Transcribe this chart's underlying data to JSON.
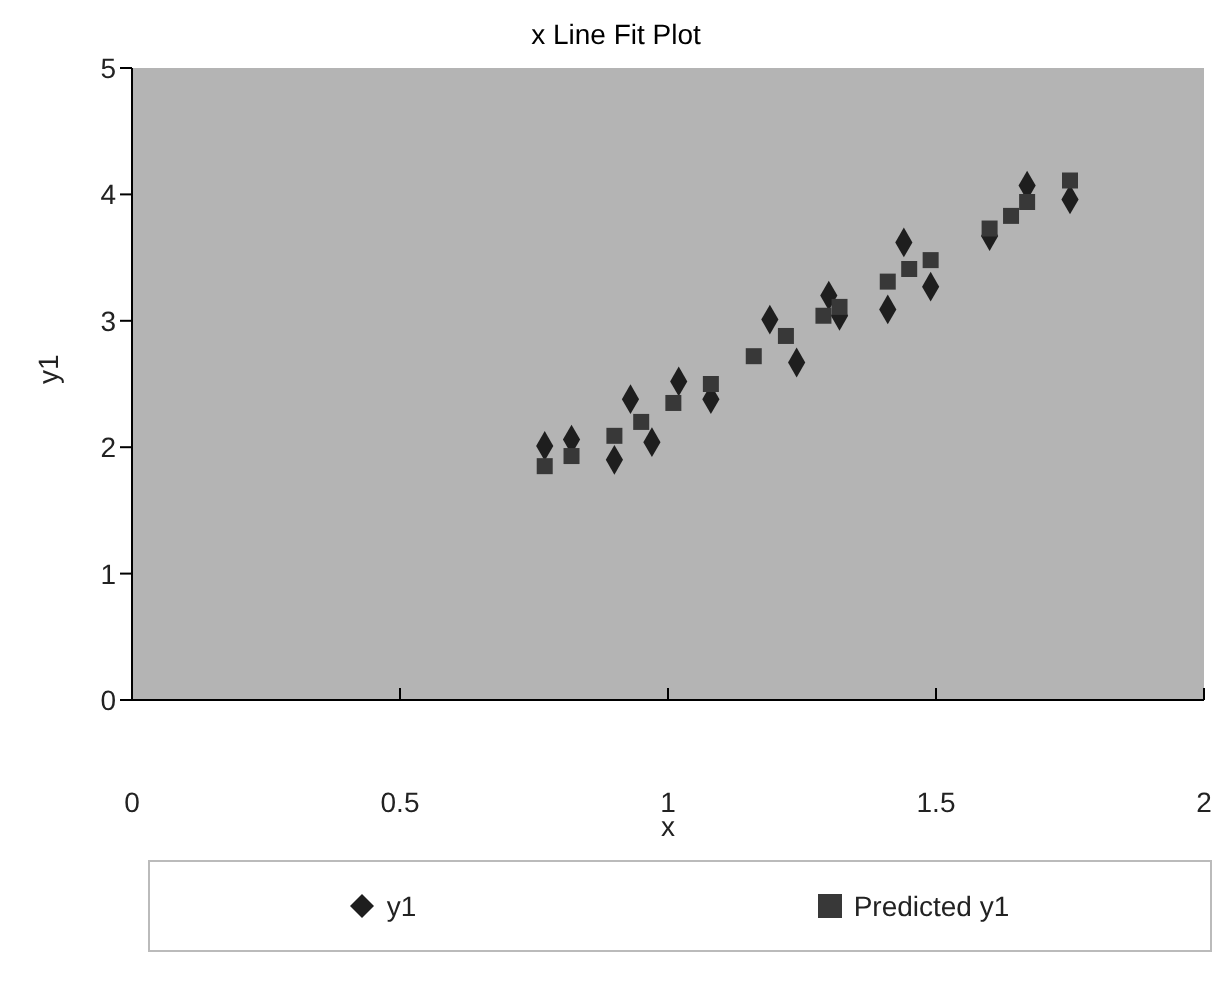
{
  "chart_data": {
    "type": "scatter",
    "title": "x Line Fit Plot",
    "xlabel": "x",
    "ylabel": "y1",
    "xlim": [
      0,
      2
    ],
    "xticks": [
      0,
      0.5,
      1,
      1.5,
      2
    ],
    "ylim": [
      0,
      5
    ],
    "yticks": [
      0,
      1,
      2,
      3,
      4,
      5
    ],
    "grid": false,
    "legend": "bottom",
    "series": [
      {
        "name": "y1",
        "color": "#1e1e1e",
        "marker": "diamond",
        "x": [
          0.77,
          0.82,
          0.9,
          0.93,
          0.97,
          1.02,
          1.08,
          1.19,
          1.24,
          1.3,
          1.32,
          1.41,
          1.44,
          1.49,
          1.6,
          1.67,
          1.75
        ],
        "values": [
          2.01,
          2.06,
          1.9,
          2.38,
          2.04,
          2.52,
          2.38,
          3.01,
          2.67,
          3.2,
          3.04,
          3.09,
          3.62,
          3.27,
          3.67,
          4.07,
          3.96
        ]
      },
      {
        "name": "Predicted y1",
        "color": "#383838",
        "marker": "square",
        "x": [
          0.77,
          0.82,
          0.9,
          0.95,
          1.01,
          1.08,
          1.16,
          1.22,
          1.29,
          1.32,
          1.41,
          1.45,
          1.49,
          1.6,
          1.64,
          1.67,
          1.75
        ],
        "values": [
          1.85,
          1.93,
          2.09,
          2.2,
          2.35,
          2.5,
          2.72,
          2.88,
          3.04,
          3.11,
          3.31,
          3.41,
          3.48,
          3.73,
          3.83,
          3.94,
          4.11
        ]
      }
    ]
  }
}
